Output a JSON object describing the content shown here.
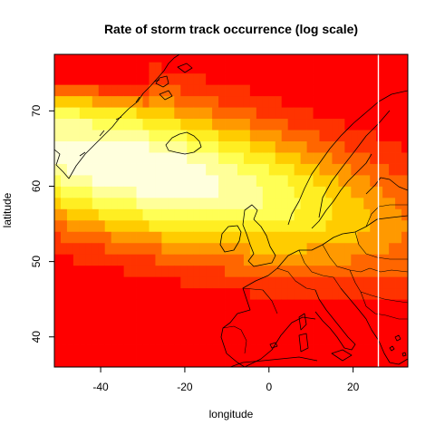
{
  "chart_data": {
    "type": "heatmap",
    "title": "Rate of storm track occurrence (log scale)",
    "xlabel": "longitude",
    "ylabel": "latitude",
    "xlim": [
      -51,
      33
    ],
    "ylim": [
      36,
      77.5
    ],
    "x_ticks": [
      -40,
      -20,
      0,
      20
    ],
    "y_ticks": [
      40,
      50,
      60,
      70
    ],
    "x_tick_labels": [
      "-40",
      "-20",
      "0",
      "20"
    ],
    "y_tick_labels": [
      "40",
      "50",
      "60",
      "70"
    ],
    "color_scale": [
      "#ff0000",
      "#ff3300",
      "#ff6600",
      "#ff9900",
      "#ffcc00",
      "#ffee22",
      "#ffff55",
      "#ffff99",
      "#ffffdd"
    ],
    "color_scale_order": "low rate (red) to high rate (pale yellow)",
    "storm_track_core": {
      "lon_range": [
        -42,
        -22
      ],
      "lat_range": [
        59,
        66
      ]
    },
    "vertical_marker_longitude": 26,
    "vertical_marker_color": "#ffffff",
    "coastline_color": "#000000",
    "grid": false,
    "legend": "none"
  }
}
